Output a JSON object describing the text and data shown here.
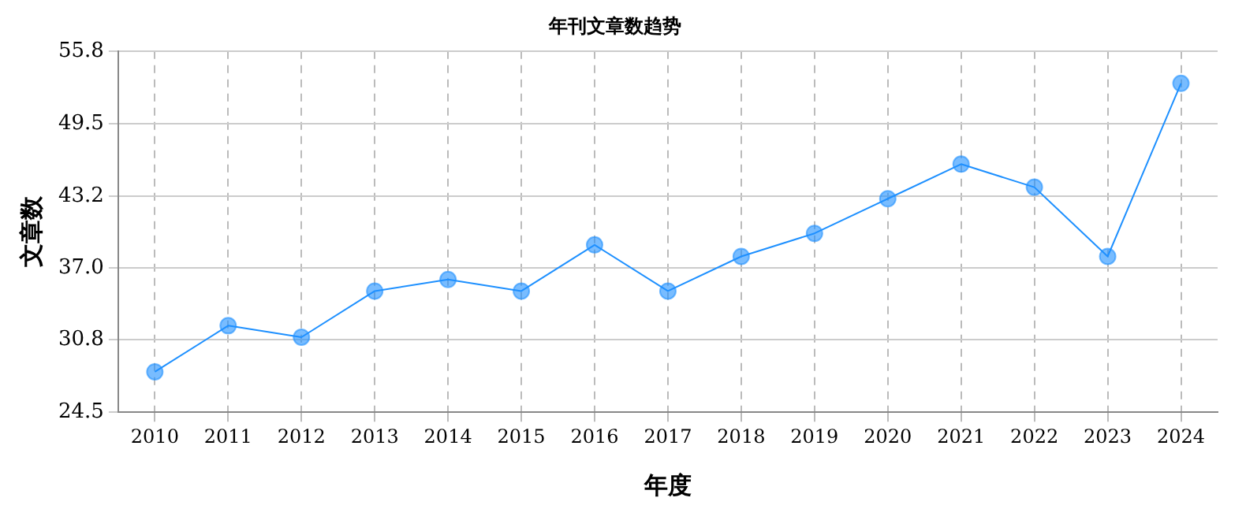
{
  "chart_data": {
    "type": "line",
    "title": "年刊文章数趋势",
    "xlabel": "年度",
    "ylabel": "文章数",
    "categories": [
      "2010",
      "2011",
      "2012",
      "2013",
      "2014",
      "2015",
      "2016",
      "2017",
      "2018",
      "2019",
      "2020",
      "2021",
      "2022",
      "2023",
      "2024"
    ],
    "series": [
      {
        "color": "#1e90ff",
        "values": [
          28,
          32,
          31,
          35,
          36,
          35,
          39,
          35,
          38,
          40,
          43,
          46,
          44,
          38,
          53
        ]
      }
    ],
    "ylim": [
      24.5,
      55.8
    ],
    "yticks": [
      24.5,
      30.8,
      {
        "value": 37,
        "label": "37.0"
      },
      43.2,
      49.5,
      55.8
    ],
    "grid": true,
    "legend": false,
    "marker": "circle",
    "line_style": "solid"
  }
}
